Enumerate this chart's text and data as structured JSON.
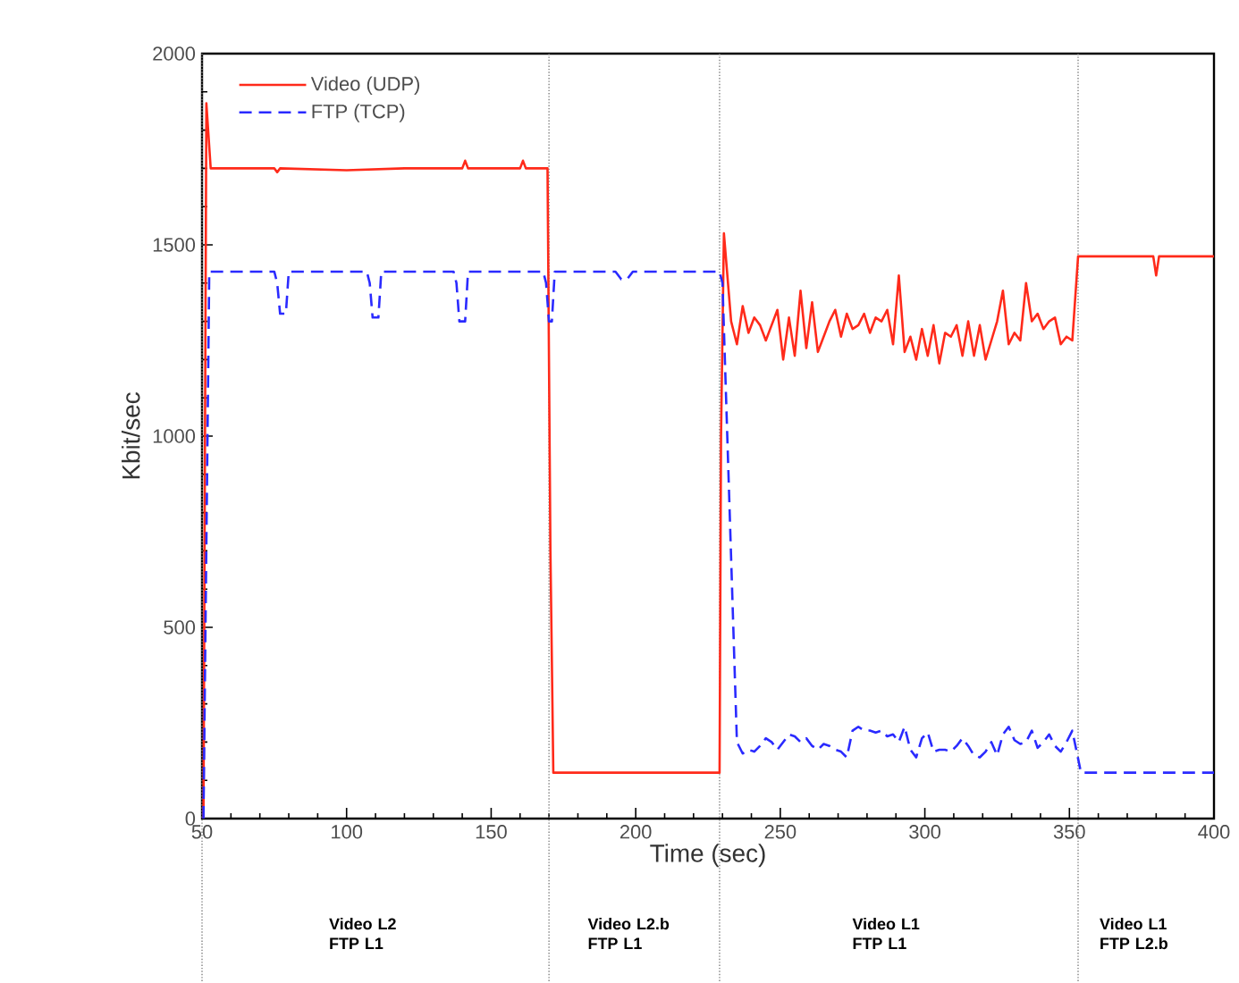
{
  "chart_data": {
    "type": "line",
    "xlabel": "Time (sec)",
    "ylabel": "Kbit/sec",
    "xlim": [
      50,
      400
    ],
    "xticks": [
      50,
      100,
      150,
      200,
      250,
      300,
      350,
      400
    ],
    "ylim": [
      0,
      2000
    ],
    "yticks": [
      0,
      500,
      1000,
      1500,
      2000
    ],
    "grid": false,
    "legend": "top left",
    "marker": "none",
    "series": [
      {
        "name": "Video (UDP)",
        "color": "#ff2a1a",
        "line_style": "solid",
        "x": [
          50.5,
          51.5,
          53,
          75,
          76,
          77,
          100,
          120,
          140,
          141,
          142,
          160,
          161,
          162,
          169.5,
          170.5,
          171.5,
          190,
          210,
          229,
          229.5,
          230.5,
          233,
          235,
          237,
          239,
          241,
          243,
          245,
          247,
          249,
          251,
          253,
          255,
          257,
          259,
          261,
          263,
          265,
          267,
          269,
          271,
          273,
          275,
          277,
          279,
          281,
          283,
          285,
          287,
          289,
          291,
          293,
          295,
          297,
          299,
          301,
          303,
          305,
          307,
          309,
          311,
          313,
          315,
          317,
          319,
          321,
          323,
          325,
          327,
          329,
          331,
          333,
          335,
          337,
          339,
          341,
          343,
          345,
          347,
          349,
          351,
          353,
          360,
          379,
          380,
          381,
          400
        ],
        "values": [
          0,
          1870,
          1700,
          1700,
          1690,
          1700,
          1695,
          1700,
          1700,
          1720,
          1700,
          1700,
          1720,
          1700,
          1700,
          700,
          120,
          120,
          120,
          120,
          1000,
          1530,
          1300,
          1240,
          1340,
          1270,
          1310,
          1290,
          1250,
          1290,
          1330,
          1200,
          1310,
          1210,
          1380,
          1230,
          1350,
          1220,
          1260,
          1300,
          1330,
          1260,
          1320,
          1280,
          1290,
          1320,
          1270,
          1310,
          1300,
          1330,
          1240,
          1420,
          1220,
          1260,
          1200,
          1280,
          1210,
          1290,
          1190,
          1270,
          1260,
          1290,
          1210,
          1300,
          1210,
          1290,
          1200,
          1250,
          1300,
          1380,
          1240,
          1270,
          1250,
          1400,
          1300,
          1320,
          1280,
          1300,
          1310,
          1240,
          1260,
          1250,
          1470,
          1470,
          1470,
          1420,
          1470,
          1470
        ]
      },
      {
        "name": "FTP (TCP)",
        "color": "#2a2aff",
        "line_style": "dashed",
        "x": [
          50.5,
          52.5,
          75,
          76,
          77,
          79,
          80,
          107,
          108,
          109,
          111,
          112,
          137,
          138,
          139,
          141,
          142,
          168,
          169,
          170,
          171,
          172,
          193,
          195,
          197,
          199,
          229,
          230,
          235,
          237,
          239,
          241,
          243,
          245,
          247,
          249,
          251,
          253,
          255,
          257,
          259,
          261,
          263,
          265,
          267,
          269,
          271,
          273,
          275,
          277,
          279,
          281,
          283,
          285,
          287,
          289,
          291,
          293,
          295,
          297,
          299,
          301,
          303,
          305,
          307,
          309,
          311,
          313,
          315,
          317,
          319,
          321,
          323,
          325,
          327,
          329,
          331,
          333,
          335,
          337,
          339,
          341,
          343,
          345,
          347,
          349,
          351,
          354,
          400
        ],
        "values": [
          0,
          1430,
          1430,
          1400,
          1320,
          1320,
          1430,
          1430,
          1400,
          1310,
          1310,
          1430,
          1430,
          1400,
          1300,
          1300,
          1430,
          1430,
          1400,
          1300,
          1300,
          1430,
          1430,
          1410,
          1410,
          1430,
          1430,
          1400,
          200,
          170,
          180,
          175,
          190,
          210,
          200,
          180,
          200,
          220,
          215,
          200,
          210,
          190,
          180,
          195,
          190,
          180,
          175,
          160,
          230,
          240,
          230,
          230,
          225,
          230,
          215,
          220,
          200,
          240,
          180,
          160,
          210,
          225,
          175,
          180,
          180,
          175,
          190,
          210,
          190,
          165,
          160,
          175,
          200,
          165,
          220,
          240,
          205,
          195,
          200,
          230,
          185,
          200,
          220,
          190,
          175,
          200,
          230,
          120,
          120
        ]
      }
    ],
    "ref_lines": [
      {
        "axis": "x",
        "value": 50,
        "line_style": "dotted"
      },
      {
        "axis": "x",
        "value": 170,
        "line_style": "dotted"
      },
      {
        "axis": "x",
        "value": 229,
        "line_style": "dotted"
      },
      {
        "axis": "x",
        "value": 353,
        "line_style": "dotted"
      }
    ],
    "annotations": [
      "Video L2 FTP L1",
      "Video L2.b FTP L1",
      "Video L1 FTP L1",
      "Video L1 FTP L2.b"
    ]
  }
}
